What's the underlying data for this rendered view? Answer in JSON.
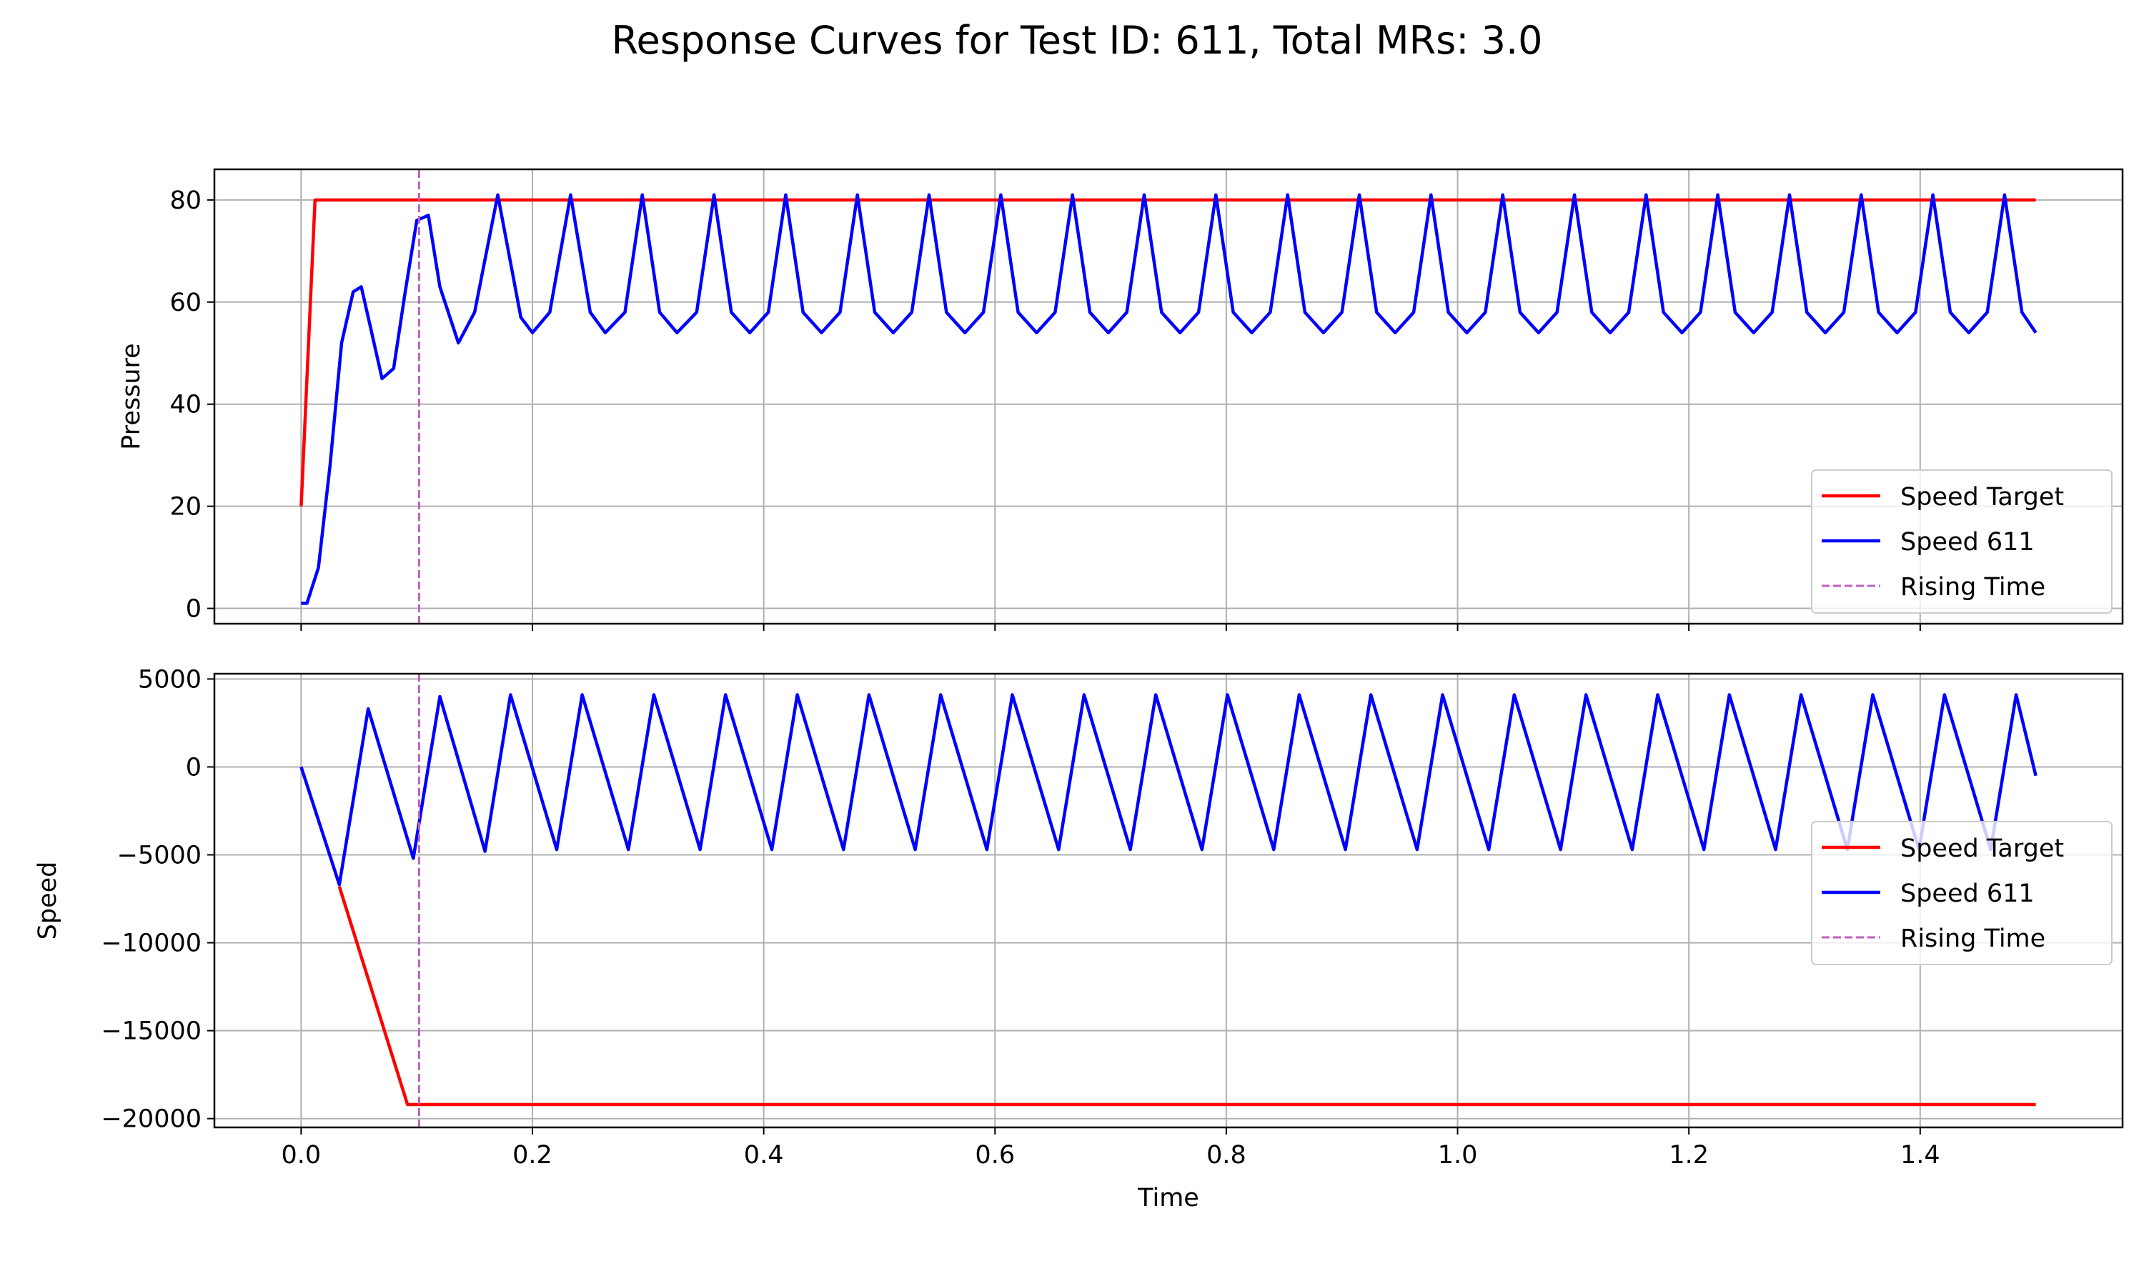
{
  "figure": {
    "title": "Response Curves for Test ID: 611, Total MRs: 3.0"
  },
  "chart_data": [
    {
      "type": "line",
      "ylabel": "Pressure",
      "xlabel": "",
      "xlim": [
        -0.075,
        1.575
      ],
      "ylim": [
        -3,
        86
      ],
      "xticks": [
        0.0,
        0.2,
        0.4,
        0.6,
        0.8,
        1.0,
        1.2,
        1.4
      ],
      "yticks": [
        0,
        20,
        40,
        60,
        80
      ],
      "ytick_labels": [
        "0",
        "20",
        "40",
        "60",
        "80"
      ],
      "xtick_labels_visible": false,
      "grid": true,
      "legend": {
        "position": "lower-right",
        "entries": [
          "Speed Target",
          "Speed 611",
          "Rising Time"
        ]
      },
      "series": [
        {
          "name": "Speed Target",
          "color": "#ff0000",
          "style": "solid",
          "x": [
            0.0,
            0.012,
            1.5
          ],
          "y": [
            20,
            80,
            80
          ]
        },
        {
          "name": "Speed 611",
          "color": "#0000ff",
          "style": "solid",
          "x": [
            0.0,
            0.005,
            0.015,
            0.025,
            0.035,
            0.045,
            0.052,
            0.06,
            0.07,
            0.08,
            0.09,
            0.1,
            0.11,
            0.12,
            0.136,
            0.15,
            0.17,
            0.19,
            0.2,
            0.215,
            0.233,
            0.25,
            0.263,
            0.28,
            0.295,
            0.31,
            0.325,
            0.342,
            0.357,
            0.372,
            0.388,
            0.404,
            0.419,
            0.434,
            0.45,
            0.466,
            0.481,
            0.496,
            0.512,
            0.528,
            0.543,
            0.558,
            0.574,
            0.59,
            0.605,
            0.62,
            0.636,
            0.652,
            0.667,
            0.682,
            0.698,
            0.714,
            0.729,
            0.744,
            0.76,
            0.776,
            0.791,
            0.806,
            0.822,
            0.838,
            0.853,
            0.868,
            0.884,
            0.9,
            0.915,
            0.93,
            0.946,
            0.962,
            0.977,
            0.992,
            1.008,
            1.024,
            1.039,
            1.054,
            1.07,
            1.086,
            1.101,
            1.116,
            1.132,
            1.148,
            1.163,
            1.178,
            1.194,
            1.21,
            1.225,
            1.24,
            1.256,
            1.272,
            1.287,
            1.302,
            1.318,
            1.334,
            1.349,
            1.364,
            1.38,
            1.396,
            1.411,
            1.426,
            1.442,
            1.458,
            1.473,
            1.488,
            1.5
          ],
          "y": [
            1,
            1,
            8,
            28,
            52,
            62,
            63,
            55,
            45,
            47,
            62,
            76,
            77,
            63,
            52,
            58,
            81,
            57,
            54,
            58,
            81,
            58,
            54,
            58,
            81,
            58,
            54,
            58,
            81,
            58,
            54,
            58,
            81,
            58,
            54,
            58,
            81,
            58,
            54,
            58,
            81,
            58,
            54,
            58,
            81,
            58,
            54,
            58,
            81,
            58,
            54,
            58,
            81,
            58,
            54,
            58,
            81,
            58,
            54,
            58,
            81,
            58,
            54,
            58,
            81,
            58,
            54,
            58,
            81,
            58,
            54,
            58,
            81,
            58,
            54,
            58,
            81,
            58,
            54,
            58,
            81,
            58,
            54,
            58,
            81,
            58,
            54,
            58,
            81,
            58,
            54,
            58,
            81,
            58,
            54,
            58,
            81,
            58,
            54,
            58,
            81,
            58,
            54
          ]
        },
        {
          "name": "Rising Time",
          "color": "#bf5fbf",
          "style": "dashed",
          "x": [
            0.102,
            0.102
          ],
          "y": [
            -3,
            86
          ]
        }
      ]
    },
    {
      "type": "line",
      "ylabel": "Speed",
      "xlabel": "Time",
      "xlim": [
        -0.075,
        1.575
      ],
      "ylim": [
        -20500,
        5300
      ],
      "xticks": [
        0.0,
        0.2,
        0.4,
        0.6,
        0.8,
        1.0,
        1.2,
        1.4
      ],
      "xtick_labels": [
        "0.0",
        "0.2",
        "0.4",
        "0.6",
        "0.8",
        "1.0",
        "1.2",
        "1.4"
      ],
      "yticks": [
        -20000,
        -15000,
        -10000,
        -5000,
        0,
        5000
      ],
      "ytick_labels": [
        "−20000",
        "−15000",
        "−10000",
        "−5000",
        "0",
        "5000"
      ],
      "grid": true,
      "legend": {
        "position": "center-right",
        "entries": [
          "Speed Target",
          "Speed 611",
          "Rising Time"
        ]
      },
      "series": [
        {
          "name": "Speed Target",
          "color": "#ff0000",
          "style": "solid",
          "x": [
            0.033,
            0.092,
            1.5
          ],
          "y": [
            -6800,
            -19200,
            -19200
          ]
        },
        {
          "name": "Speed 611",
          "color": "#0000ff",
          "style": "solid",
          "x": [
            0.0,
            0.033,
            0.058,
            0.097,
            0.12,
            0.159,
            0.181,
            0.221,
            0.243,
            0.283,
            0.305,
            0.345,
            0.367,
            0.407,
            0.429,
            0.469,
            0.491,
            0.531,
            0.553,
            0.593,
            0.615,
            0.655,
            0.677,
            0.717,
            0.739,
            0.779,
            0.801,
            0.841,
            0.863,
            0.903,
            0.925,
            0.965,
            0.987,
            1.027,
            1.049,
            1.089,
            1.111,
            1.151,
            1.173,
            1.213,
            1.235,
            1.275,
            1.297,
            1.337,
            1.359,
            1.399,
            1.421,
            1.461,
            1.483,
            1.5
          ],
          "y": [
            0,
            -6700,
            3300,
            -5200,
            4000,
            -4800,
            4100,
            -4700,
            4100,
            -4700,
            4100,
            -4700,
            4100,
            -4700,
            4100,
            -4700,
            4100,
            -4700,
            4100,
            -4700,
            4100,
            -4700,
            4100,
            -4700,
            4100,
            -4700,
            4100,
            -4700,
            4100,
            -4700,
            4100,
            -4700,
            4100,
            -4700,
            4100,
            -4700,
            4100,
            -4700,
            4100,
            -4700,
            4100,
            -4700,
            4100,
            -4700,
            4100,
            -4700,
            4100,
            -4700,
            4100,
            -500
          ]
        },
        {
          "name": "Rising Time",
          "color": "#bf5fbf",
          "style": "dashed",
          "x": [
            0.102,
            0.102
          ],
          "y": [
            -20500,
            5300
          ]
        }
      ]
    }
  ]
}
